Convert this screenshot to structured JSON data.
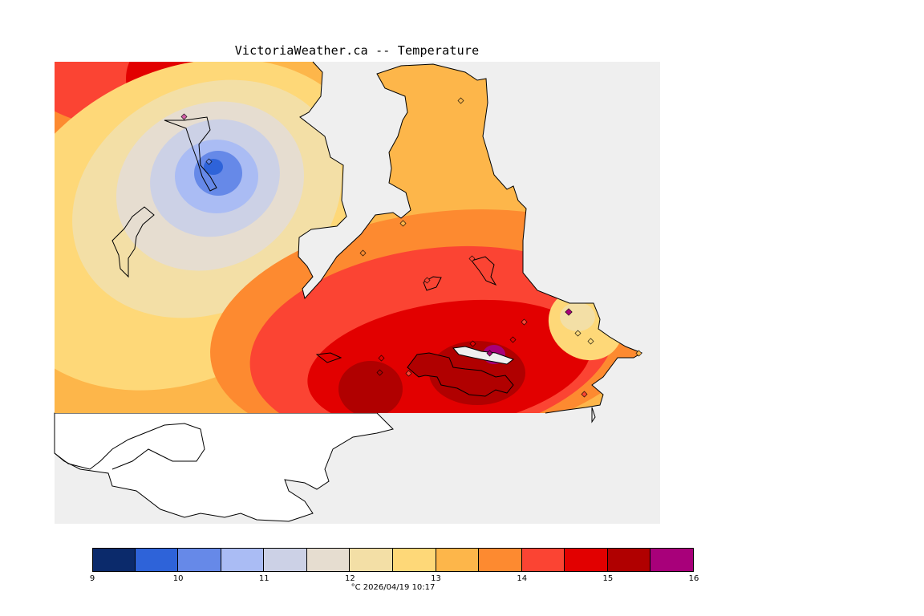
{
  "title": "VictoriaWeather.ca -- Temperature",
  "legend": {
    "caption": "°C  2026/04/19 10:17",
    "ticks": [
      "9",
      "10",
      "11",
      "12",
      "13",
      "14",
      "15",
      "16"
    ],
    "bins": [
      {
        "from": 9.0,
        "to": 9.5,
        "color": "#0b2a6b"
      },
      {
        "from": 9.5,
        "to": 10.0,
        "color": "#2e63d9"
      },
      {
        "from": 10.0,
        "to": 10.5,
        "color": "#6689e8"
      },
      {
        "from": 10.5,
        "to": 11.0,
        "color": "#aabcf4"
      },
      {
        "from": 11.0,
        "to": 11.5,
        "color": "#ccd1e6"
      },
      {
        "from": 11.5,
        "to": 12.0,
        "color": "#e6ddd0"
      },
      {
        "from": 12.0,
        "to": 12.5,
        "color": "#f3dfa6"
      },
      {
        "from": 12.5,
        "to": 13.0,
        "color": "#fed878"
      },
      {
        "from": 13.0,
        "to": 13.5,
        "color": "#fdb64a"
      },
      {
        "from": 13.5,
        "to": 14.0,
        "color": "#fd8a30"
      },
      {
        "from": 14.0,
        "to": 14.5,
        "color": "#fb4433"
      },
      {
        "from": 14.5,
        "to": 15.0,
        "color": "#e20000"
      },
      {
        "from": 15.0,
        "to": 15.5,
        "color": "#b00000"
      },
      {
        "from": 15.5,
        "to": 16.0,
        "color": "#a8007a"
      }
    ]
  },
  "colors": {
    "water": "#efefef",
    "land_outline": "#000000",
    "station_marker": "#9b5cc8"
  }
}
